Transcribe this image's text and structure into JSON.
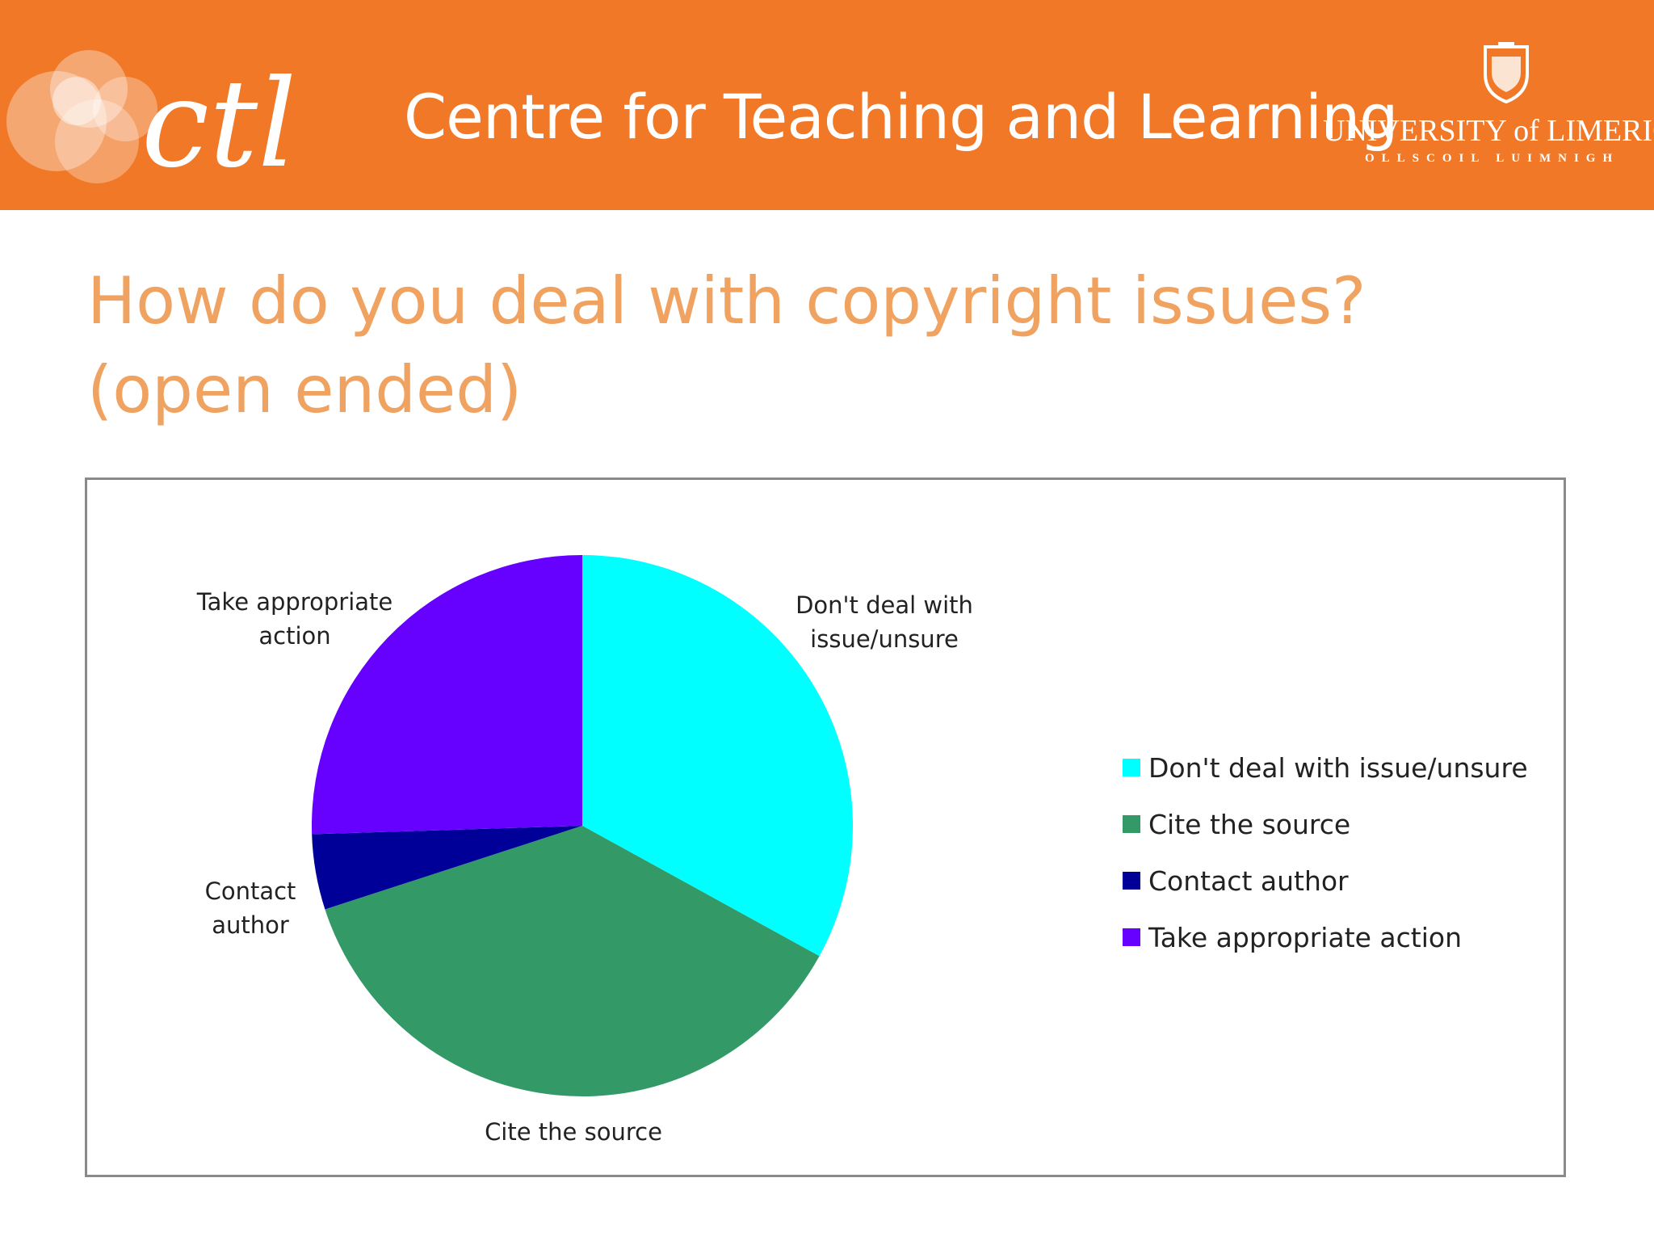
{
  "header": {
    "logo_text": "ctl",
    "title": "Centre for Teaching and Learning",
    "university_name": "UNIVERSITY of LIMERICK",
    "university_subtitle": "OLLSCOIL LUIMNIGH",
    "background_color": "#f07826",
    "crest_icon": "university-crest-icon"
  },
  "slide": {
    "title_line1": "How do you deal with copyright issues?",
    "title_line2": "(open ended)",
    "title_color": "#f0a261"
  },
  "chart_data": {
    "type": "pie",
    "title": "",
    "categories": [
      "Don't deal with issue/unsure",
      "Cite the source",
      "Contact author",
      "Take appropriate action"
    ],
    "values": [
      33,
      37,
      4.5,
      25.5
    ],
    "unit": "percent (estimated share)",
    "start_angle_deg": 0,
    "direction": "clockwise",
    "colors": [
      "#00ffff",
      "#339966",
      "#000099",
      "#6600ff"
    ],
    "slice_labels": [
      [
        "Don't deal with",
        "issue/unsure"
      ],
      [
        "Cite the source"
      ],
      [
        "Contact",
        "author"
      ],
      [
        "Take appropriate",
        "action"
      ]
    ],
    "legend_placement": "right"
  }
}
